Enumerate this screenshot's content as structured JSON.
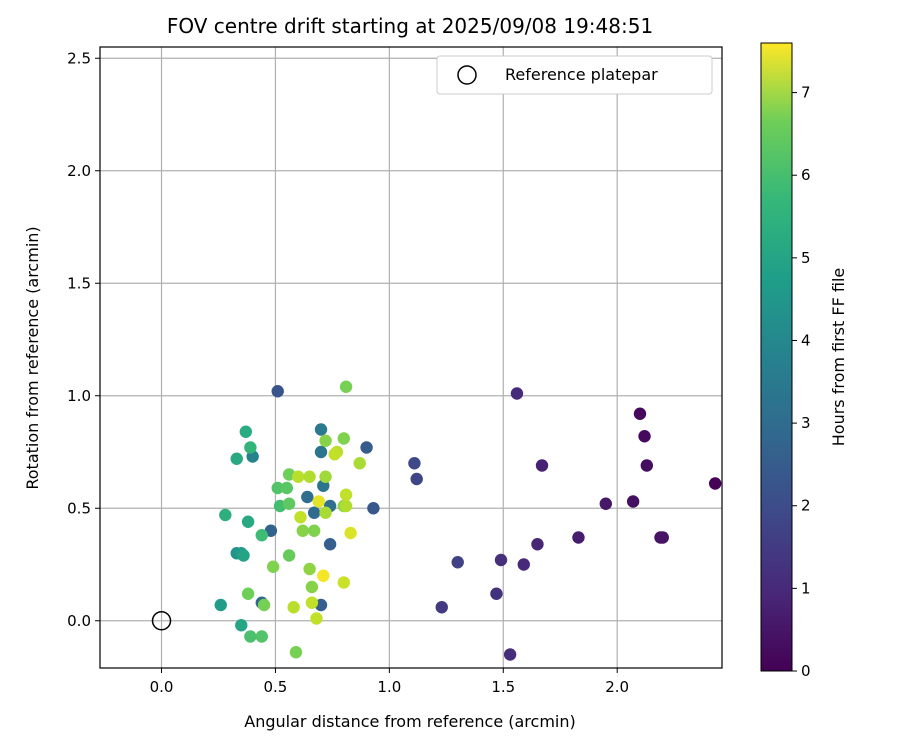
{
  "chart_data": {
    "type": "scatter",
    "title": "FOV centre drift starting at 2025/09/08 19:48:51",
    "xlabel": "Angular distance from reference (arcmin)",
    "ylabel": "Rotation from reference (arcmin)",
    "xlim": [
      -0.27,
      2.46
    ],
    "ylim": [
      -0.21,
      2.55
    ],
    "xticks": [
      0.0,
      0.5,
      1.0,
      1.5,
      2.0
    ],
    "xtick_labels": [
      "0.0",
      "0.5",
      "1.0",
      "1.5",
      "2.0"
    ],
    "yticks": [
      0.0,
      0.5,
      1.0,
      1.5,
      2.0,
      2.5
    ],
    "ytick_labels": [
      "0.0",
      "0.5",
      "1.0",
      "1.5",
      "2.0",
      "2.5"
    ],
    "grid": true,
    "legend": {
      "placement": "top-right",
      "entries": [
        "Reference platepar"
      ]
    },
    "colorbar": {
      "label": "Hours from first FF file",
      "colormap": "viridis",
      "range": [
        0,
        7.6
      ],
      "ticks": [
        0,
        1,
        2,
        3,
        4,
        5,
        6,
        7
      ],
      "tick_labels": [
        "0",
        "1",
        "2",
        "3",
        "4",
        "5",
        "6",
        "7"
      ]
    },
    "reference": {
      "name": "Reference platepar",
      "x": 0.0,
      "y": 0.0
    },
    "series": [
      {
        "points": [
          {
            "x": 2.43,
            "y": 0.61,
            "c": 0.05
          },
          {
            "x": 2.1,
            "y": 0.92,
            "c": 0.15
          },
          {
            "x": 2.12,
            "y": 0.82,
            "c": 0.2
          },
          {
            "x": 2.13,
            "y": 0.69,
            "c": 0.25
          },
          {
            "x": 2.07,
            "y": 0.53,
            "c": 0.3
          },
          {
            "x": 2.19,
            "y": 0.37,
            "c": 0.35
          },
          {
            "x": 2.2,
            "y": 0.37,
            "c": 0.4
          },
          {
            "x": 1.95,
            "y": 0.52,
            "c": 0.5
          },
          {
            "x": 1.83,
            "y": 0.37,
            "c": 0.6
          },
          {
            "x": 1.67,
            "y": 0.69,
            "c": 0.7
          },
          {
            "x": 1.65,
            "y": 0.34,
            "c": 0.8
          },
          {
            "x": 1.59,
            "y": 0.25,
            "c": 0.85
          },
          {
            "x": 1.56,
            "y": 1.01,
            "c": 0.9
          },
          {
            "x": 1.53,
            "y": -0.15,
            "c": 1.0
          },
          {
            "x": 1.49,
            "y": 0.27,
            "c": 1.05
          },
          {
            "x": 1.47,
            "y": 0.12,
            "c": 1.1
          },
          {
            "x": 1.3,
            "y": 0.26,
            "c": 1.5
          },
          {
            "x": 1.23,
            "y": 0.06,
            "c": 1.3
          },
          {
            "x": 1.12,
            "y": 0.63,
            "c": 1.6
          },
          {
            "x": 1.11,
            "y": 0.7,
            "c": 1.7
          },
          {
            "x": 0.51,
            "y": 1.02,
            "c": 2.0
          },
          {
            "x": 0.93,
            "y": 0.5,
            "c": 2.1
          },
          {
            "x": 0.9,
            "y": 0.77,
            "c": 2.2
          },
          {
            "x": 0.74,
            "y": 0.34,
            "c": 2.3
          },
          {
            "x": 0.7,
            "y": 0.07,
            "c": 2.3
          },
          {
            "x": 0.48,
            "y": 0.4,
            "c": 2.4
          },
          {
            "x": 0.44,
            "y": 0.08,
            "c": 2.5
          },
          {
            "x": 0.67,
            "y": 0.48,
            "c": 2.6
          },
          {
            "x": 0.64,
            "y": 0.55,
            "c": 2.7
          },
          {
            "x": 0.74,
            "y": 0.51,
            "c": 2.8
          },
          {
            "x": 0.71,
            "y": 0.6,
            "c": 2.9
          },
          {
            "x": 0.7,
            "y": 0.75,
            "c": 3.0
          },
          {
            "x": 0.7,
            "y": 0.85,
            "c": 3.1
          },
          {
            "x": 0.4,
            "y": 0.73,
            "c": 3.4
          },
          {
            "x": 0.33,
            "y": 0.3,
            "c": 3.9
          },
          {
            "x": 0.35,
            "y": 0.3,
            "c": 4.1
          },
          {
            "x": 0.26,
            "y": 0.07,
            "c": 4.2
          },
          {
            "x": 0.35,
            "y": -0.02,
            "c": 4.5
          },
          {
            "x": 0.36,
            "y": 0.29,
            "c": 4.4
          },
          {
            "x": 0.33,
            "y": 0.72,
            "c": 4.6
          },
          {
            "x": 0.37,
            "y": 0.84,
            "c": 4.7
          },
          {
            "x": 0.38,
            "y": 0.44,
            "c": 4.6
          },
          {
            "x": 0.28,
            "y": 0.47,
            "c": 4.8
          },
          {
            "x": 0.39,
            "y": 0.77,
            "c": 5.0
          },
          {
            "x": 0.44,
            "y": 0.38,
            "c": 5.2
          },
          {
            "x": 0.39,
            "y": -0.07,
            "c": 5.4
          },
          {
            "x": 0.44,
            "y": -0.07,
            "c": 5.5
          },
          {
            "x": 0.52,
            "y": 0.51,
            "c": 5.3
          },
          {
            "x": 0.51,
            "y": 0.59,
            "c": 5.5
          },
          {
            "x": 0.55,
            "y": 0.59,
            "c": 5.6
          },
          {
            "x": 0.56,
            "y": 0.52,
            "c": 5.7
          },
          {
            "x": 0.56,
            "y": 0.29,
            "c": 5.8
          },
          {
            "x": 0.38,
            "y": 0.12,
            "c": 5.9
          },
          {
            "x": 0.45,
            "y": 0.07,
            "c": 6.0
          },
          {
            "x": 0.49,
            "y": 0.24,
            "c": 6.1
          },
          {
            "x": 0.56,
            "y": 0.65,
            "c": 5.9
          },
          {
            "x": 0.59,
            "y": -0.14,
            "c": 6.0
          },
          {
            "x": 0.62,
            "y": 0.4,
            "c": 6.2
          },
          {
            "x": 0.67,
            "y": 0.4,
            "c": 6.1
          },
          {
            "x": 0.65,
            "y": 0.23,
            "c": 6.3
          },
          {
            "x": 0.66,
            "y": 0.15,
            "c": 6.2
          },
          {
            "x": 0.72,
            "y": 0.8,
            "c": 6.2
          },
          {
            "x": 0.8,
            "y": 0.81,
            "c": 6.1
          },
          {
            "x": 0.81,
            "y": 1.04,
            "c": 6.0
          },
          {
            "x": 0.8,
            "y": 0.51,
            "c": 6.3
          },
          {
            "x": 0.72,
            "y": 0.64,
            "c": 6.5
          },
          {
            "x": 0.77,
            "y": 0.75,
            "c": 6.8
          },
          {
            "x": 0.76,
            "y": 0.74,
            "c": 6.9
          },
          {
            "x": 0.72,
            "y": 0.48,
            "c": 6.6
          },
          {
            "x": 0.81,
            "y": 0.51,
            "c": 6.7
          },
          {
            "x": 0.81,
            "y": 0.56,
            "c": 6.9
          },
          {
            "x": 0.87,
            "y": 0.7,
            "c": 6.6
          },
          {
            "x": 0.6,
            "y": 0.64,
            "c": 6.8
          },
          {
            "x": 0.65,
            "y": 0.64,
            "c": 6.7
          },
          {
            "x": 0.61,
            "y": 0.46,
            "c": 6.9
          },
          {
            "x": 0.58,
            "y": 0.06,
            "c": 6.8
          },
          {
            "x": 0.66,
            "y": 0.08,
            "c": 6.9
          },
          {
            "x": 0.68,
            "y": 0.01,
            "c": 6.9
          },
          {
            "x": 0.8,
            "y": 0.17,
            "c": 7.0
          },
          {
            "x": 0.83,
            "y": 0.39,
            "c": 7.2
          },
          {
            "x": 0.69,
            "y": 0.53,
            "c": 7.3
          },
          {
            "x": 0.71,
            "y": 0.2,
            "c": 7.5
          }
        ]
      }
    ]
  }
}
